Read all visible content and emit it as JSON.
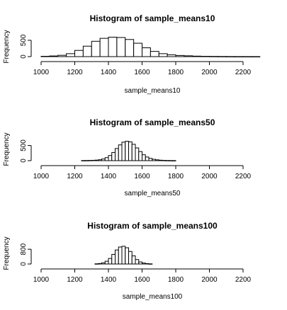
{
  "chart_data": [
    {
      "type": "bar",
      "title": "Histogram of sample_means10",
      "xlabel": "sample_means10",
      "ylabel": "Frequency",
      "xlim": [
        1000,
        2300
      ],
      "ylim": [
        0,
        650
      ],
      "xticks": [
        1000,
        1200,
        1400,
        1600,
        1800,
        2000,
        2200
      ],
      "yticks": [
        0,
        500
      ],
      "bin_width": 50,
      "bins_start": 1000,
      "values": [
        10,
        20,
        40,
        90,
        190,
        320,
        470,
        560,
        595,
        585,
        525,
        410,
        270,
        160,
        90,
        55,
        35,
        25,
        15,
        10,
        7,
        5,
        3,
        2,
        2,
        1
      ]
    },
    {
      "type": "bar",
      "title": "Histogram of sample_means50",
      "xlabel": "sample_means50",
      "ylabel": "Frequency",
      "xlim": [
        1000,
        2200
      ],
      "ylim": [
        0,
        700
      ],
      "xticks": [
        1000,
        1200,
        1400,
        1600,
        1800,
        2000,
        2200
      ],
      "yticks": [
        0,
        500
      ],
      "bin_width": 20,
      "bins_start": 1240,
      "values": [
        4,
        6,
        8,
        12,
        18,
        30,
        55,
        100,
        170,
        270,
        400,
        520,
        610,
        640,
        620,
        540,
        420,
        300,
        195,
        120,
        75,
        45,
        28,
        16,
        10,
        6,
        4,
        3
      ]
    },
    {
      "type": "bar",
      "title": "Histogram of sample_means100",
      "xlabel": "sample_means100",
      "ylabel": "Frequency",
      "xlim": [
        1000,
        2200
      ],
      "ylim": [
        0,
        1150
      ],
      "xticks": [
        1000,
        1200,
        1400,
        1600,
        1800,
        2000,
        2200
      ],
      "yticks": [
        0,
        800
      ],
      "bin_width": 20,
      "bins_start": 1320,
      "values": [
        10,
        25,
        60,
        150,
        300,
        520,
        760,
        920,
        960,
        880,
        680,
        440,
        240,
        110,
        50,
        20,
        8
      ]
    }
  ]
}
